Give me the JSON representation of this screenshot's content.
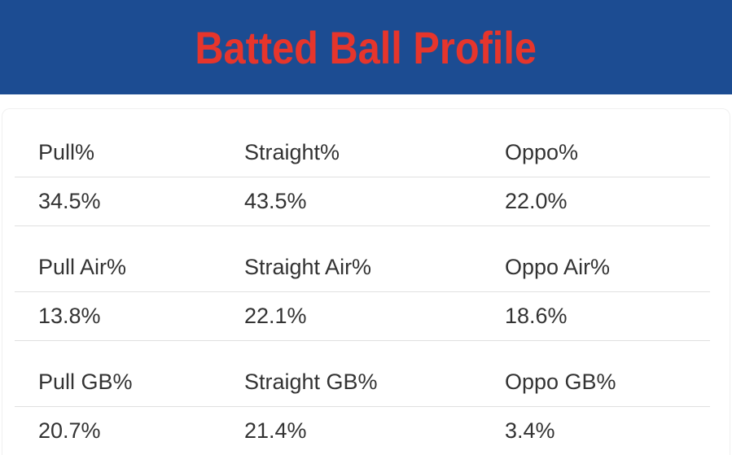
{
  "banner": {
    "title": "Batted Ball Profile",
    "bg_color": "#1C4C92",
    "title_color": "#E6352C"
  },
  "table": {
    "groups": [
      {
        "labels": [
          "Pull%",
          "Straight%",
          "Oppo%"
        ],
        "values": [
          "34.5%",
          "43.5%",
          "22.0%"
        ]
      },
      {
        "labels": [
          "Pull Air%",
          "Straight Air%",
          "Oppo Air%"
        ],
        "values": [
          "13.8%",
          "22.1%",
          "18.6%"
        ]
      },
      {
        "labels": [
          "Pull GB%",
          "Straight GB%",
          "Oppo GB%"
        ],
        "values": [
          "20.7%",
          "21.4%",
          "3.4%"
        ]
      }
    ]
  }
}
